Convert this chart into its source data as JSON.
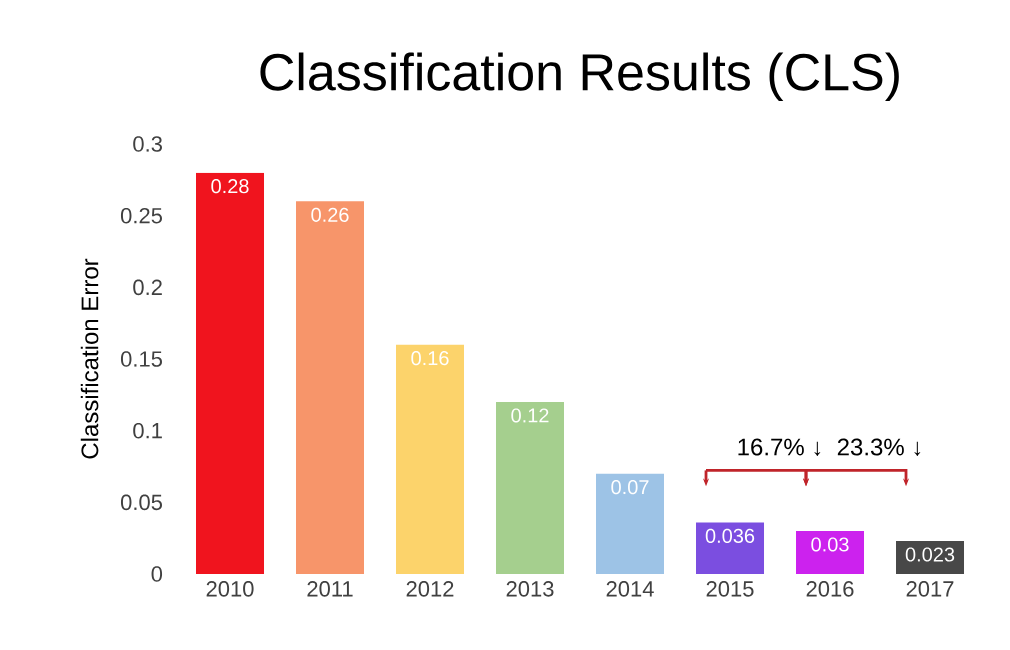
{
  "chart_data": {
    "type": "bar",
    "title": "Classification Results (CLS)",
    "ylabel": "Classification Error",
    "categories": [
      "2010",
      "2011",
      "2012",
      "2013",
      "2014",
      "2015",
      "2016",
      "2017"
    ],
    "values": [
      0.28,
      0.26,
      0.16,
      0.12,
      0.07,
      0.036,
      0.03,
      0.023
    ],
    "colors": [
      "#f0141e",
      "#f7956a",
      "#fcd36b",
      "#a5cf8e",
      "#9dc3e6",
      "#7b4ee0",
      "#cc22ee",
      "#484848"
    ],
    "ylim": [
      0,
      0.3
    ],
    "yticks": [
      0,
      0.05,
      0.1,
      0.15,
      0.2,
      0.25,
      0.3
    ],
    "data_labels": true,
    "annotations": [
      "16.7% ↓",
      "23.3% ↓"
    ]
  }
}
